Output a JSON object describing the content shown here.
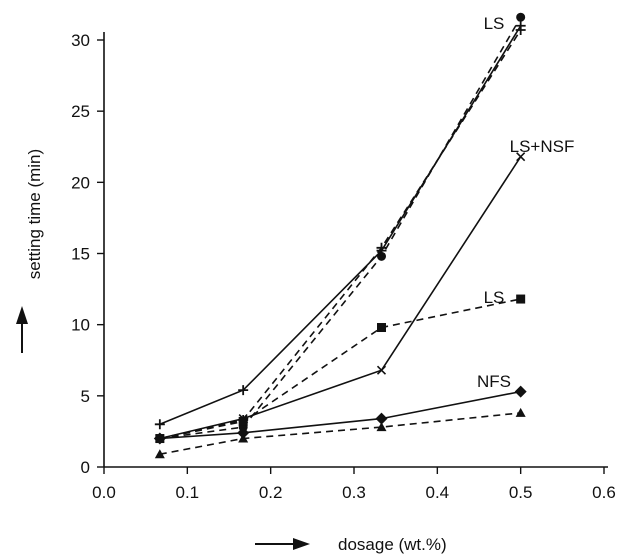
{
  "chart_data": {
    "type": "line",
    "title": "",
    "xlabel": "dosage (wt.%)",
    "ylabel": "setting time (min)",
    "xlim": [
      0.0,
      0.6
    ],
    "ylim": [
      0,
      30
    ],
    "xticks": [
      "0.0",
      "0.1",
      "0.2",
      "0.3",
      "0.4",
      "0.5",
      "0.6"
    ],
    "yticks": [
      "0",
      "5",
      "10",
      "15",
      "20",
      "25",
      "30"
    ],
    "grid": false,
    "series": [
      {
        "label": "",
        "style": "dashed",
        "marker": "circle",
        "x": [
          0.067,
          0.167,
          0.333,
          0.5
        ],
        "y": [
          2.0,
          2.8,
          14.8,
          31.6
        ]
      },
      {
        "label": "",
        "style": "dashed",
        "marker": "plus",
        "x": [
          0.067,
          0.167,
          0.333,
          0.5
        ],
        "y": [
          2.0,
          3.3,
          15.4,
          30.7
        ]
      },
      {
        "label": "",
        "style": "solid",
        "marker": "plus",
        "x": [
          0.067,
          0.167,
          0.333,
          0.5
        ],
        "y": [
          3.0,
          5.4,
          15.2,
          31.0
        ]
      },
      {
        "label": "",
        "style": "solid",
        "marker": "cross",
        "x": [
          0.067,
          0.167,
          0.333,
          0.5
        ],
        "y": [
          2.0,
          3.4,
          6.8,
          21.8
        ]
      },
      {
        "label": "",
        "style": "dashed",
        "marker": "square",
        "x": [
          0.067,
          0.167,
          0.333,
          0.5
        ],
        "y": [
          2.0,
          3.2,
          9.8,
          11.8
        ]
      },
      {
        "label": "",
        "style": "solid",
        "marker": "diamond",
        "x": [
          0.067,
          0.167,
          0.333,
          0.5
        ],
        "y": [
          2.0,
          2.4,
          3.4,
          5.3
        ]
      },
      {
        "label": "",
        "style": "dashed",
        "marker": "triangle",
        "x": [
          0.067,
          0.167,
          0.333,
          0.5
        ],
        "y": [
          0.9,
          2.0,
          2.8,
          3.8
        ]
      }
    ],
    "annotations": [
      {
        "text": "LS",
        "near_series": 0
      },
      {
        "text": "LS+NSF",
        "near_series": 3
      },
      {
        "text": "LS",
        "near_series": 4
      },
      {
        "text": "NFS",
        "near_series": 5
      }
    ]
  }
}
